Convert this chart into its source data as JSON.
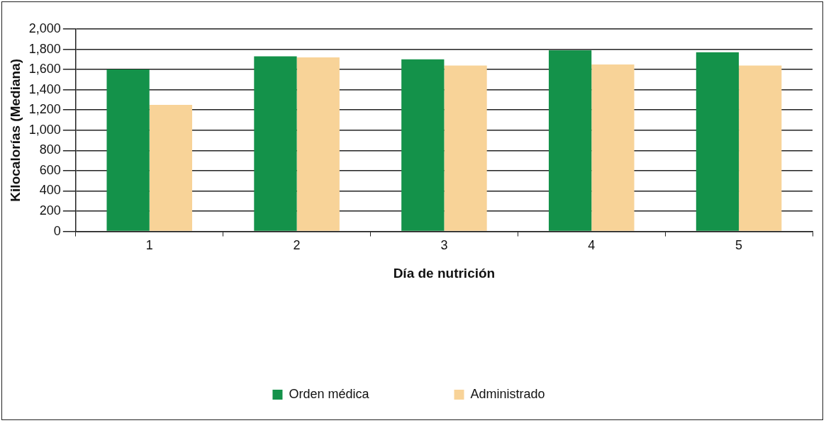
{
  "chart_data": {
    "type": "bar",
    "xlabel": "Día de nutrición",
    "ylabel": "Kilocalorías (Mediana)",
    "categories": [
      "1",
      "2",
      "3",
      "4",
      "5"
    ],
    "series": [
      {
        "name": "Orden médica",
        "color": "#14924a",
        "values": [
          1600,
          1730,
          1700,
          1790,
          1770
        ]
      },
      {
        "name": "Administrado",
        "color": "#f8d398",
        "values": [
          1250,
          1720,
          1640,
          1650,
          1640
        ]
      }
    ],
    "ylim": [
      0,
      2000
    ],
    "yticks": [
      0,
      200,
      400,
      600,
      800,
      {
        "value": 1000,
        "label": "1,000"
      },
      {
        "value": 1200,
        "label": "1,200"
      },
      {
        "value": 1400,
        "label": "1,400"
      },
      {
        "value": 1600,
        "label": "1,600"
      },
      {
        "value": 1800,
        "label": "1,800"
      },
      {
        "value": 2000,
        "label": "2,000"
      }
    ],
    "grid": "y",
    "legend": "bottom"
  }
}
